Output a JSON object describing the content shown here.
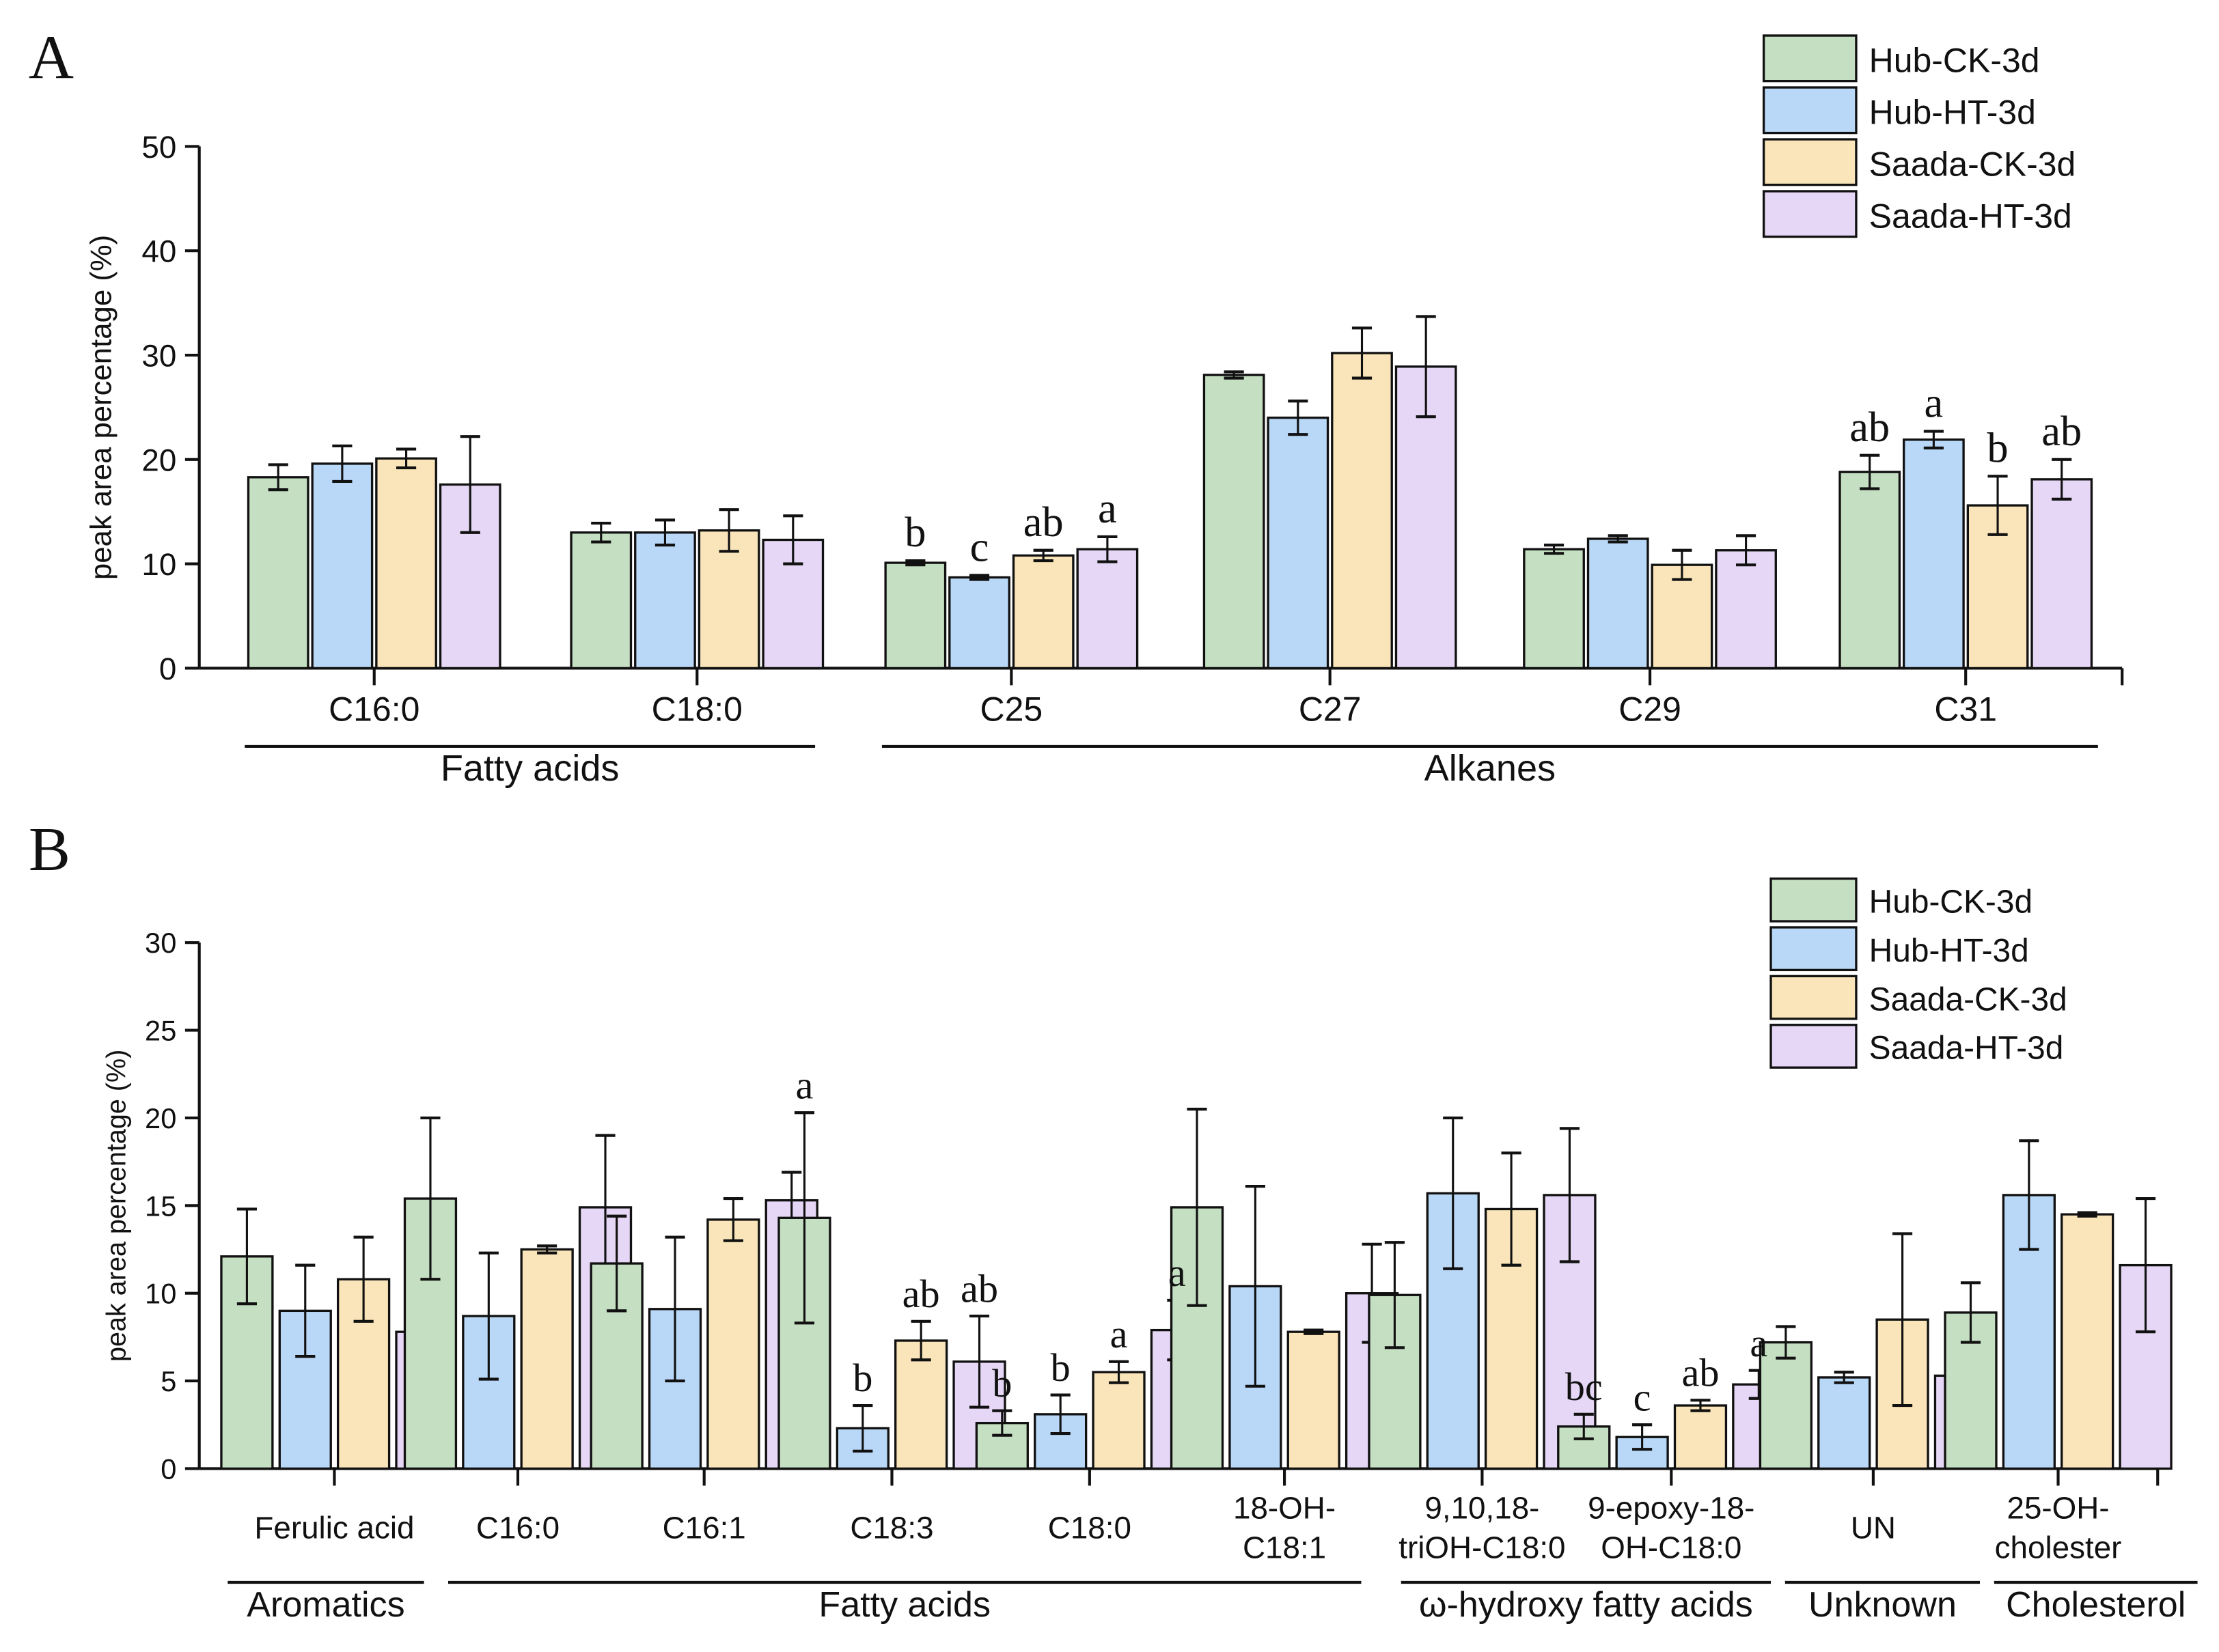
{
  "colors": {
    "Hub-CK-3d": "#c5dfc2",
    "Hub-HT-3d": "#b9d8f7",
    "Saada-CK-3d": "#f9e5b9",
    "Saada-HT-3d": "#e5d7f5"
  },
  "chart_data": [
    {
      "panel_label": "A",
      "type": "bar",
      "ylabel": "peak area percentage (%)",
      "ylim": [
        0,
        50
      ],
      "yticks": [
        "0",
        "10",
        "20",
        "30",
        "40",
        "50"
      ],
      "legend": [
        "Hub-CK-3d",
        "Hub-HT-3d",
        "Saada-CK-3d",
        "Saada-HT-3d"
      ],
      "legend_position": "top-right",
      "categories": [
        {
          "label": [
            "C16:0"
          ],
          "group": "Fatty acids"
        },
        {
          "label": [
            "C18:0"
          ],
          "group": "Fatty acids"
        },
        {
          "label": [
            "C25"
          ],
          "group": "Alkanes"
        },
        {
          "label": [
            "C27"
          ],
          "group": "Alkanes"
        },
        {
          "label": [
            "C29"
          ],
          "group": "Alkanes"
        },
        {
          "label": [
            "C31"
          ],
          "group": "Alkanes"
        }
      ],
      "groups": [
        "Fatty acids",
        "Alkanes"
      ],
      "series": [
        {
          "name": "Hub-CK-3d",
          "values": [
            18.3,
            13.0,
            10.1,
            28.1,
            11.4,
            18.8
          ],
          "errors": [
            1.2,
            0.9,
            0.2,
            0.3,
            0.4,
            1.6
          ]
        },
        {
          "name": "Hub-HT-3d",
          "values": [
            19.6,
            13.0,
            8.7,
            24.0,
            12.4,
            21.9
          ],
          "errors": [
            1.7,
            1.2,
            0.2,
            1.6,
            0.3,
            0.8
          ]
        },
        {
          "name": "Saada-CK-3d",
          "values": [
            20.1,
            13.2,
            10.8,
            30.2,
            9.9,
            15.6
          ],
          "errors": [
            0.9,
            2.0,
            0.5,
            2.4,
            1.4,
            2.8
          ]
        },
        {
          "name": "Saada-HT-3d",
          "values": [
            17.6,
            12.3,
            11.4,
            28.9,
            11.3,
            18.1
          ],
          "errors": [
            4.6,
            2.3,
            1.2,
            4.8,
            1.4,
            1.9
          ]
        }
      ],
      "annotations": [
        {
          "category": 2,
          "letters": [
            "b",
            "c",
            "ab",
            "a"
          ]
        },
        {
          "category": 5,
          "letters": [
            "ab",
            "a",
            "b",
            "ab"
          ]
        }
      ]
    },
    {
      "panel_label": "B",
      "type": "bar",
      "ylabel": "peak area percentage (%)",
      "ylim": [
        0,
        30
      ],
      "yticks": [
        "0",
        "5",
        "10",
        "15",
        "20",
        "25",
        "30"
      ],
      "legend": [
        "Hub-CK-3d",
        "Hub-HT-3d",
        "Saada-CK-3d",
        "Saada-HT-3d"
      ],
      "legend_position": "top-right",
      "categories": [
        {
          "label": [
            "Ferulic acid"
          ],
          "group": "Aromatics"
        },
        {
          "label": [
            "C16:0"
          ],
          "group": "Fatty acids"
        },
        {
          "label": [
            "C16:1"
          ],
          "group": "Fatty acids"
        },
        {
          "label": [
            "C18:3"
          ],
          "group": "Fatty acids"
        },
        {
          "label": [
            "C18:0"
          ],
          "group": "Fatty acids"
        },
        {
          "label": [
            "18-OH-",
            "C18:1"
          ],
          "group": "Fatty acids"
        },
        {
          "label": [
            "9,10,18-",
            "triOH-C18:0"
          ],
          "group": "ω-hydroxy fatty acids"
        },
        {
          "label": [
            "9-epoxy-18-",
            "OH-C18:0"
          ],
          "group": "ω-hydroxy fatty acids"
        },
        {
          "label": [
            "UN"
          ],
          "group": "Unknown"
        },
        {
          "label": [
            "25-OH-",
            "cholester"
          ],
          "group": "Cholesterol"
        }
      ],
      "groups": [
        "Aromatics",
        "Fatty acids",
        "ω-hydroxy fatty acids",
        "Unknown",
        "Cholesterol"
      ],
      "series": [
        {
          "name": "Hub-CK-3d",
          "values": [
            12.1,
            15.4,
            11.7,
            14.3,
            2.6,
            14.9,
            9.9,
            2.4,
            7.2,
            8.9
          ],
          "errors": [
            2.7,
            4.6,
            2.7,
            6.0,
            0.7,
            5.6,
            3.0,
            0.7,
            0.9,
            1.7
          ]
        },
        {
          "name": "Hub-HT-3d",
          "values": [
            9.0,
            8.7,
            9.1,
            2.3,
            3.1,
            10.4,
            15.7,
            1.8,
            5.2,
            15.6
          ],
          "errors": [
            2.6,
            3.6,
            4.1,
            1.3,
            1.1,
            5.7,
            4.3,
            0.7,
            0.3,
            3.1
          ]
        },
        {
          "name": "Saada-CK-3d",
          "values": [
            10.8,
            12.5,
            14.2,
            7.3,
            5.5,
            7.8,
            14.8,
            3.6,
            8.5,
            14.5
          ],
          "errors": [
            2.4,
            0.2,
            1.2,
            1.1,
            0.6,
            0.1,
            3.2,
            0.3,
            4.9,
            0.1
          ]
        },
        {
          "name": "Saada-HT-3d",
          "values": [
            7.8,
            14.9,
            15.3,
            6.1,
            7.9,
            10.0,
            15.6,
            4.8,
            5.3,
            11.6
          ],
          "errors": [
            7.1,
            4.1,
            1.6,
            2.6,
            1.7,
            2.8,
            3.8,
            0.8,
            1.2,
            3.8
          ]
        }
      ],
      "annotations": [
        {
          "category": 3,
          "letters": [
            "a",
            "b",
            "ab",
            "ab"
          ]
        },
        {
          "category": 4,
          "letters": [
            "b",
            "b",
            "a",
            "a"
          ]
        },
        {
          "category": 7,
          "letters": [
            "bc",
            "c",
            "ab",
            "a"
          ]
        }
      ]
    }
  ]
}
